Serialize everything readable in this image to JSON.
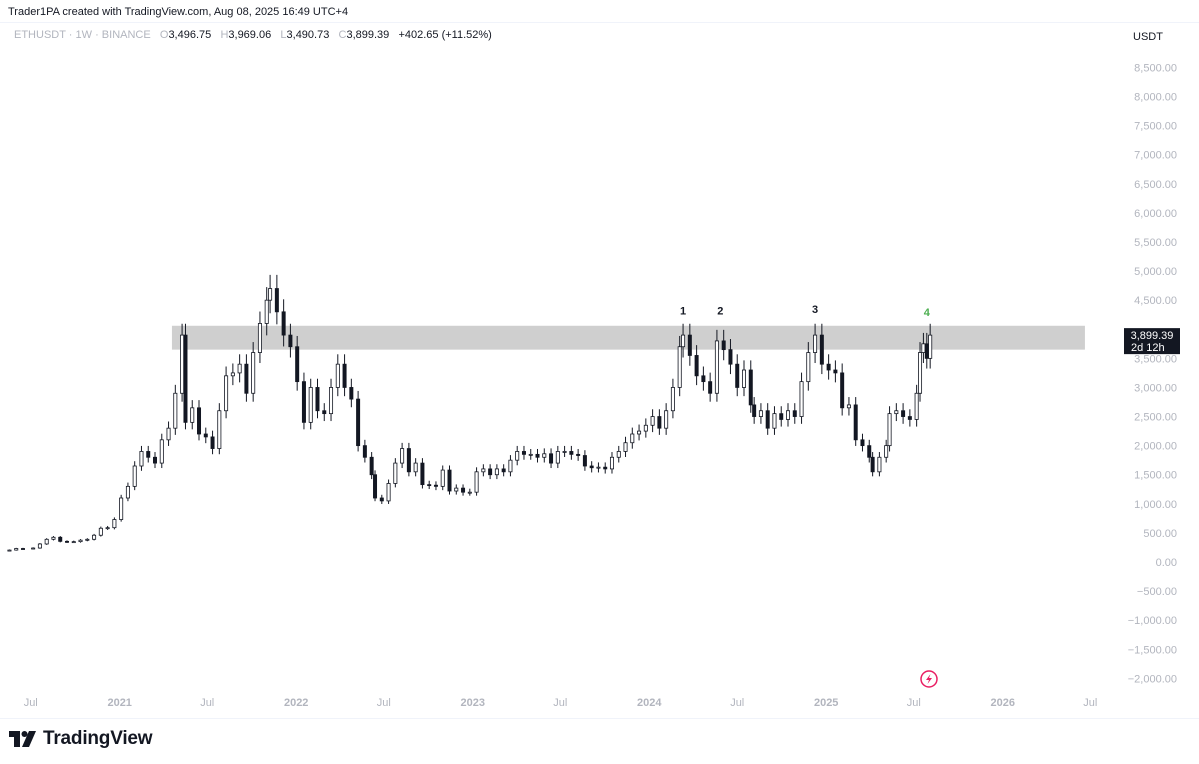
{
  "header": {
    "created_line": "Trader1PA created with TradingView.com, Aug 08, 2025 16:49 UTC+4"
  },
  "legend": {
    "symbol": "ETHUSDT · 1W · BINANCE",
    "o_label": "O",
    "open": "3,496.75",
    "h_label": "H",
    "high": "3,969.06",
    "l_label": "L",
    "low": "3,490.73",
    "c_label": "C",
    "close": "3,899.39",
    "change": "+402.65 (+11.52%)"
  },
  "footer": {
    "brand": "TradingView"
  },
  "colors": {
    "candle": "#131722",
    "zone": "#cfcfcf",
    "label_black": "#131722",
    "label_green": "#4caf50",
    "axis_text": "#b2b5be",
    "price_tag_bg": "#131722",
    "flash_icon": "#e91e63"
  },
  "icons": [
    "tradingview-logo-icon",
    "flash-icon"
  ],
  "chart_data": {
    "type": "candlestick",
    "currency_label": "USDT",
    "y_axis": {
      "range": [
        -2200,
        8800
      ],
      "ticks": [
        "8,500.00",
        "8,000.00",
        "7,500.00",
        "7,000.00",
        "6,500.00",
        "6,000.00",
        "5,500.00",
        "5,000.00",
        "4,500.00",
        "3,500.00",
        "3,000.00",
        "2,500.00",
        "2,000.00",
        "1,500.00",
        "1,000.00",
        "500.00",
        "0.00",
        "−500.00",
        "−1,000.00",
        "−1,500.00",
        "−2,000.00"
      ],
      "tick_values": [
        8500,
        8000,
        7500,
        7000,
        6500,
        6000,
        5500,
        5000,
        4500,
        3500,
        3000,
        2500,
        2000,
        1500,
        1000,
        500,
        0,
        -500,
        -1000,
        -1500,
        -2000
      ]
    },
    "x_axis": {
      "range": [
        "2020-05-15",
        "2026-08-15"
      ],
      "ticks": [
        {
          "label": "Jul",
          "date": "2020-07-01",
          "bold": false
        },
        {
          "label": "2021",
          "date": "2021-01-01",
          "bold": true
        },
        {
          "label": "Jul",
          "date": "2021-07-01",
          "bold": false
        },
        {
          "label": "2022",
          "date": "2022-01-01",
          "bold": true
        },
        {
          "label": "Jul",
          "date": "2022-07-01",
          "bold": false
        },
        {
          "label": "2023",
          "date": "2023-01-01",
          "bold": true
        },
        {
          "label": "Jul",
          "date": "2023-07-01",
          "bold": false
        },
        {
          "label": "2024",
          "date": "2024-01-01",
          "bold": true
        },
        {
          "label": "Jul",
          "date": "2024-07-01",
          "bold": false
        },
        {
          "label": "2025",
          "date": "2025-01-01",
          "bold": true
        },
        {
          "label": "Jul",
          "date": "2025-07-01",
          "bold": false
        },
        {
          "label": "2026",
          "date": "2026-01-01",
          "bold": true
        },
        {
          "label": "Jul",
          "date": "2026-07-01",
          "bold": false
        }
      ]
    },
    "last_price": {
      "value": 3899.39,
      "label": "3,899.39",
      "countdown": "2d 12h"
    },
    "zone": {
      "from_date": "2021-04-19",
      "to_date": "2026-06-20",
      "low": 3650,
      "high": 4060
    },
    "annotations": [
      {
        "text": "1",
        "date": "2024-03-11",
        "price": 4250,
        "color": "black"
      },
      {
        "text": "2",
        "date": "2024-05-27",
        "price": 4250,
        "color": "black"
      },
      {
        "text": "3",
        "date": "2024-12-09",
        "price": 4280,
        "color": "black"
      },
      {
        "text": "4",
        "date": "2025-07-28",
        "price": 4230,
        "color": "green"
      }
    ],
    "series": [
      {
        "d": "2020-05-18",
        "c": 205
      },
      {
        "d": "2020-06-01",
        "c": 232
      },
      {
        "d": "2020-06-15",
        "c": 230
      },
      {
        "d": "2020-07-06",
        "c": 240
      },
      {
        "d": "2020-07-20",
        "c": 310
      },
      {
        "d": "2020-08-03",
        "c": 390
      },
      {
        "d": "2020-08-17",
        "c": 425
      },
      {
        "d": "2020-08-31",
        "c": 355
      },
      {
        "d": "2020-09-14",
        "c": 345
      },
      {
        "d": "2020-09-28",
        "c": 350
      },
      {
        "d": "2020-10-12",
        "c": 375
      },
      {
        "d": "2020-10-26",
        "c": 390
      },
      {
        "d": "2020-11-09",
        "c": 460
      },
      {
        "d": "2020-11-23",
        "c": 580
      },
      {
        "d": "2020-12-07",
        "c": 590
      },
      {
        "d": "2020-12-21",
        "c": 730
      },
      {
        "d": "2021-01-04",
        "c": 1100
      },
      {
        "d": "2021-01-18",
        "c": 1300
      },
      {
        "d": "2021-02-01",
        "c": 1650
      },
      {
        "d": "2021-02-15",
        "c": 1900
      },
      {
        "d": "2021-03-01",
        "c": 1800
      },
      {
        "d": "2021-03-15",
        "c": 1700
      },
      {
        "d": "2021-03-29",
        "c": 2100
      },
      {
        "d": "2021-04-12",
        "c": 2300
      },
      {
        "d": "2021-04-26",
        "c": 2900
      },
      {
        "d": "2021-05-10",
        "c": 3900
      },
      {
        "d": "2021-05-17",
        "c": 2400
      },
      {
        "d": "2021-05-31",
        "c": 2650
      },
      {
        "d": "2021-06-14",
        "c": 2200
      },
      {
        "d": "2021-06-28",
        "c": 2150
      },
      {
        "d": "2021-07-12",
        "c": 1950
      },
      {
        "d": "2021-07-26",
        "c": 2600
      },
      {
        "d": "2021-08-09",
        "c": 3200
      },
      {
        "d": "2021-08-23",
        "c": 3250
      },
      {
        "d": "2021-09-06",
        "c": 3400
      },
      {
        "d": "2021-09-20",
        "c": 2900
      },
      {
        "d": "2021-10-04",
        "c": 3600
      },
      {
        "d": "2021-10-18",
        "c": 4100
      },
      {
        "d": "2021-11-01",
        "c": 4500
      },
      {
        "d": "2021-11-08",
        "c": 4700
      },
      {
        "d": "2021-11-22",
        "c": 4300
      },
      {
        "d": "2021-12-06",
        "c": 3900
      },
      {
        "d": "2021-12-20",
        "c": 3700
      },
      {
        "d": "2022-01-03",
        "c": 3100
      },
      {
        "d": "2022-01-17",
        "c": 2400
      },
      {
        "d": "2022-01-31",
        "c": 3000
      },
      {
        "d": "2022-02-14",
        "c": 2600
      },
      {
        "d": "2022-02-28",
        "c": 2550
      },
      {
        "d": "2022-03-14",
        "c": 3000
      },
      {
        "d": "2022-03-28",
        "c": 3400
      },
      {
        "d": "2022-04-11",
        "c": 3000
      },
      {
        "d": "2022-04-25",
        "c": 2800
      },
      {
        "d": "2022-05-09",
        "c": 2000
      },
      {
        "d": "2022-05-23",
        "c": 1800
      },
      {
        "d": "2022-06-06",
        "c": 1500
      },
      {
        "d": "2022-06-13",
        "c": 1100
      },
      {
        "d": "2022-06-27",
        "c": 1050
      },
      {
        "d": "2022-07-11",
        "c": 1350
      },
      {
        "d": "2022-07-25",
        "c": 1700
      },
      {
        "d": "2022-08-08",
        "c": 1950
      },
      {
        "d": "2022-08-22",
        "c": 1550
      },
      {
        "d": "2022-09-05",
        "c": 1700
      },
      {
        "d": "2022-09-19",
        "c": 1330
      },
      {
        "d": "2022-10-03",
        "c": 1320
      },
      {
        "d": "2022-10-17",
        "c": 1300
      },
      {
        "d": "2022-10-31",
        "c": 1580
      },
      {
        "d": "2022-11-14",
        "c": 1220
      },
      {
        "d": "2022-11-28",
        "c": 1270
      },
      {
        "d": "2022-12-12",
        "c": 1200
      },
      {
        "d": "2022-12-26",
        "c": 1200
      },
      {
        "d": "2023-01-09",
        "c": 1550
      },
      {
        "d": "2023-01-23",
        "c": 1600
      },
      {
        "d": "2023-02-06",
        "c": 1500
      },
      {
        "d": "2023-02-20",
        "c": 1600
      },
      {
        "d": "2023-03-06",
        "c": 1550
      },
      {
        "d": "2023-03-20",
        "c": 1750
      },
      {
        "d": "2023-04-03",
        "c": 1900
      },
      {
        "d": "2023-04-17",
        "c": 1850
      },
      {
        "d": "2023-05-01",
        "c": 1850
      },
      {
        "d": "2023-05-15",
        "c": 1800
      },
      {
        "d": "2023-05-29",
        "c": 1860
      },
      {
        "d": "2023-06-12",
        "c": 1700
      },
      {
        "d": "2023-06-26",
        "c": 1900
      },
      {
        "d": "2023-07-10",
        "c": 1900
      },
      {
        "d": "2023-07-24",
        "c": 1850
      },
      {
        "d": "2023-08-07",
        "c": 1830
      },
      {
        "d": "2023-08-21",
        "c": 1650
      },
      {
        "d": "2023-09-04",
        "c": 1620
      },
      {
        "d": "2023-09-18",
        "c": 1630
      },
      {
        "d": "2023-10-02",
        "c": 1600
      },
      {
        "d": "2023-10-16",
        "c": 1800
      },
      {
        "d": "2023-10-30",
        "c": 1900
      },
      {
        "d": "2023-11-13",
        "c": 2050
      },
      {
        "d": "2023-11-27",
        "c": 2200
      },
      {
        "d": "2023-12-11",
        "c": 2250
      },
      {
        "d": "2023-12-25",
        "c": 2350
      },
      {
        "d": "2024-01-08",
        "c": 2500
      },
      {
        "d": "2024-01-22",
        "c": 2300
      },
      {
        "d": "2024-02-05",
        "c": 2600
      },
      {
        "d": "2024-02-19",
        "c": 3000
      },
      {
        "d": "2024-03-04",
        "c": 3700
      },
      {
        "d": "2024-03-11",
        "c": 3900
      },
      {
        "d": "2024-03-25",
        "c": 3550
      },
      {
        "d": "2024-04-08",
        "c": 3200
      },
      {
        "d": "2024-04-22",
        "c": 3100
      },
      {
        "d": "2024-05-06",
        "c": 2900
      },
      {
        "d": "2024-05-20",
        "c": 3800
      },
      {
        "d": "2024-06-03",
        "c": 3650
      },
      {
        "d": "2024-06-17",
        "c": 3400
      },
      {
        "d": "2024-07-01",
        "c": 3000
      },
      {
        "d": "2024-07-15",
        "c": 3300
      },
      {
        "d": "2024-07-29",
        "c": 2700
      },
      {
        "d": "2024-08-05",
        "c": 2500
      },
      {
        "d": "2024-08-19",
        "c": 2600
      },
      {
        "d": "2024-09-02",
        "c": 2300
      },
      {
        "d": "2024-09-16",
        "c": 2550
      },
      {
        "d": "2024-09-30",
        "c": 2450
      },
      {
        "d": "2024-10-14",
        "c": 2600
      },
      {
        "d": "2024-10-28",
        "c": 2500
      },
      {
        "d": "2024-11-11",
        "c": 3100
      },
      {
        "d": "2024-11-25",
        "c": 3600
      },
      {
        "d": "2024-12-09",
        "c": 3900
      },
      {
        "d": "2024-12-23",
        "c": 3400
      },
      {
        "d": "2025-01-06",
        "c": 3300
      },
      {
        "d": "2025-01-20",
        "c": 3250
      },
      {
        "d": "2025-02-03",
        "c": 2650
      },
      {
        "d": "2025-02-17",
        "c": 2700
      },
      {
        "d": "2025-03-03",
        "c": 2100
      },
      {
        "d": "2025-03-17",
        "c": 2000
      },
      {
        "d": "2025-03-31",
        "c": 1800
      },
      {
        "d": "2025-04-07",
        "c": 1550
      },
      {
        "d": "2025-04-21",
        "c": 1800
      },
      {
        "d": "2025-05-05",
        "c": 2000
      },
      {
        "d": "2025-05-12",
        "c": 2550
      },
      {
        "d": "2025-05-26",
        "c": 2600
      },
      {
        "d": "2025-06-09",
        "c": 2500
      },
      {
        "d": "2025-06-23",
        "c": 2450
      },
      {
        "d": "2025-07-07",
        "c": 2900
      },
      {
        "d": "2025-07-14",
        "c": 3600
      },
      {
        "d": "2025-07-21",
        "c": 3750
      },
      {
        "d": "2025-07-28",
        "c": 3500
      },
      {
        "d": "2025-08-04",
        "c": 3899.39
      }
    ]
  }
}
